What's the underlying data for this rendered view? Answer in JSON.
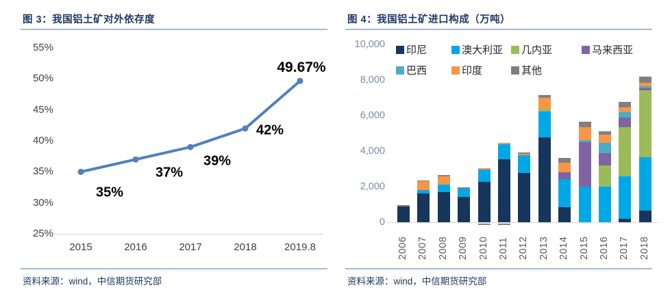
{
  "left_panel": {
    "title": "图 3：我国铝土矿对外依存度",
    "source": "资料来源：wind，中信期货研究部",
    "chart_data": {
      "type": "line",
      "title": "我国铝土矿对外依存度",
      "x": [
        "2015",
        "2016",
        "2017",
        "2018",
        "2019.8"
      ],
      "values": [
        35,
        37,
        39,
        42,
        49.67
      ],
      "data_labels": [
        "35%",
        "37%",
        "39%",
        "42%",
        "49.67%"
      ],
      "yticks": [
        {
          "v": 25,
          "label": "25%"
        },
        {
          "v": 30,
          "label": "30%"
        },
        {
          "v": 35,
          "label": "35%"
        },
        {
          "v": 40,
          "label": "40%"
        },
        {
          "v": 45,
          "label": "45%"
        },
        {
          "v": 50,
          "label": "50%"
        },
        {
          "v": 55,
          "label": "55%"
        }
      ],
      "ylim": [
        25,
        55
      ],
      "grid": false,
      "line_color": "#4F81BD",
      "marker": "circle"
    }
  },
  "right_panel": {
    "title": "图 4：我国铝土矿进口构成（万吨）",
    "source": "资料来源：wind，中信期货研究部",
    "chart_data": {
      "type": "bar",
      "stacked": true,
      "title": "我国铝土矿进口构成（万吨）",
      "categories": [
        "2006",
        "2007",
        "2008",
        "2009",
        "2010",
        "2011",
        "2012",
        "2013",
        "2014",
        "2015",
        "2016",
        "2017",
        "2018"
      ],
      "series": [
        {
          "name": "印尼",
          "color": "#16365C",
          "values": [
            880,
            1600,
            1700,
            1420,
            2260,
            3540,
            2770,
            4770,
            850,
            0,
            0,
            190,
            650
          ]
        },
        {
          "name": "澳大利亚",
          "color": "#00A8E8",
          "values": [
            0,
            200,
            430,
            480,
            700,
            850,
            1010,
            1450,
            1590,
            1990,
            2010,
            2400,
            3010
          ]
        },
        {
          "name": "几内亚",
          "color": "#9BBB59",
          "values": [
            0,
            0,
            0,
            0,
            0,
            0,
            0,
            110,
            0,
            0,
            1180,
            2740,
            3760
          ]
        },
        {
          "name": "马来西亚",
          "color": "#8064A2",
          "values": [
            0,
            0,
            0,
            0,
            0,
            0,
            0,
            0,
            385,
            2500,
            700,
            550,
            100
          ]
        },
        {
          "name": "巴西",
          "color": "#4BACC6",
          "values": [
            0,
            0,
            0,
            0,
            0,
            0,
            0,
            0,
            0,
            120,
            580,
            320,
            150
          ]
        },
        {
          "name": "印度",
          "color": "#F79646",
          "values": [
            0,
            500,
            450,
            0,
            60,
            90,
            80,
            660,
            515,
            730,
            470,
            280,
            170
          ]
        },
        {
          "name": "其他",
          "color": "#808080",
          "values": [
            70,
            50,
            70,
            60,
            -60,
            -60,
            70,
            150,
            280,
            300,
            160,
            290,
            350
          ]
        }
      ],
      "yticks": [
        {
          "v": 0,
          "label": "0"
        },
        {
          "v": 2000,
          "label": "2,000"
        },
        {
          "v": 4000,
          "label": "4,000"
        },
        {
          "v": 6000,
          "label": "6,000"
        },
        {
          "v": 8000,
          "label": "8,000"
        },
        {
          "v": 10000,
          "label": "10,000"
        }
      ],
      "ylim": [
        0,
        10000
      ],
      "grid": false,
      "legend_position": "top"
    }
  }
}
